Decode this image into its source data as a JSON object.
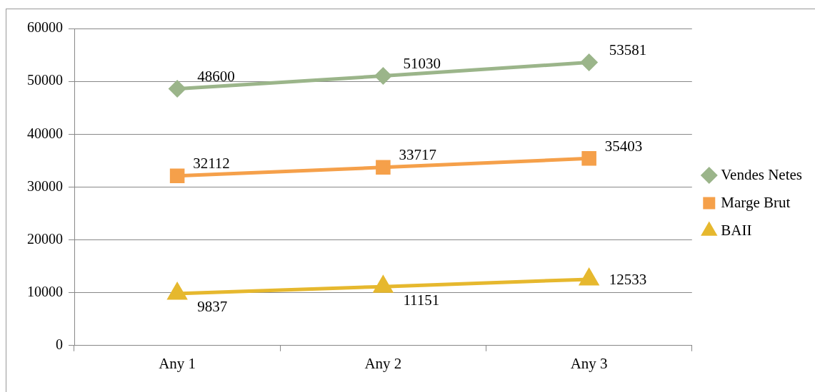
{
  "chart_data": {
    "type": "line",
    "categories": [
      "Any 1",
      "Any 2",
      "Any 3"
    ],
    "series": [
      {
        "name": "Vendes Netes",
        "color": "#9bb58a",
        "marker": "diamond",
        "values": [
          48600,
          51030,
          53581
        ]
      },
      {
        "name": "Marge Brut",
        "color": "#f5a04a",
        "marker": "square",
        "values": [
          32112,
          33717,
          35403
        ]
      },
      {
        "name": "BAII",
        "color": "#e6b82e",
        "marker": "triangle",
        "values": [
          9837,
          11151,
          12533
        ]
      }
    ],
    "ylim": [
      0,
      60000
    ],
    "yticks": [
      0,
      10000,
      20000,
      30000,
      40000,
      50000,
      60000
    ],
    "grid": "y",
    "legend": "right",
    "data_labels": true
  }
}
